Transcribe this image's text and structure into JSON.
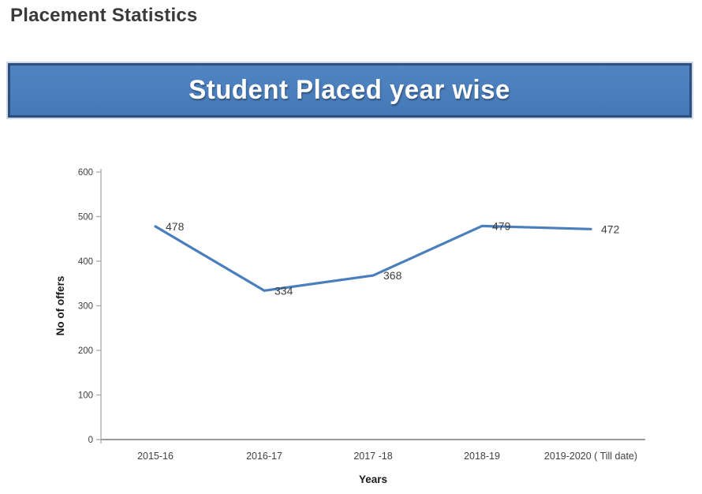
{
  "page": {
    "heading": "Placement Statistics"
  },
  "banner": {
    "title": "Student Placed year wise"
  },
  "colors": {
    "banner_fill": "#4a7ebc",
    "banner_border": "#2e4e7e",
    "banner_text": "#ffffff",
    "line": "#4a7ebc",
    "axis": "#a8a8a8",
    "tick_label": "#404040",
    "data_label": "#3d3d3d",
    "heading_text": "#3a3a3a"
  },
  "chart_data": {
    "type": "line",
    "title": "Student Placed year wise",
    "categories": [
      "2015-16",
      "2016-17",
      "2017 -18",
      "2018-19",
      "2019-2020 ( Till date)"
    ],
    "values": [
      478,
      334,
      368,
      479,
      472
    ],
    "xlabel": "Years",
    "ylabel": "No of offers",
    "ylim": [
      0,
      600
    ],
    "yticks": [
      0,
      100,
      200,
      300,
      400,
      500,
      600
    ],
    "grid": false,
    "legend": "none",
    "data_labels": true,
    "line_color": "#4a7ebc"
  }
}
